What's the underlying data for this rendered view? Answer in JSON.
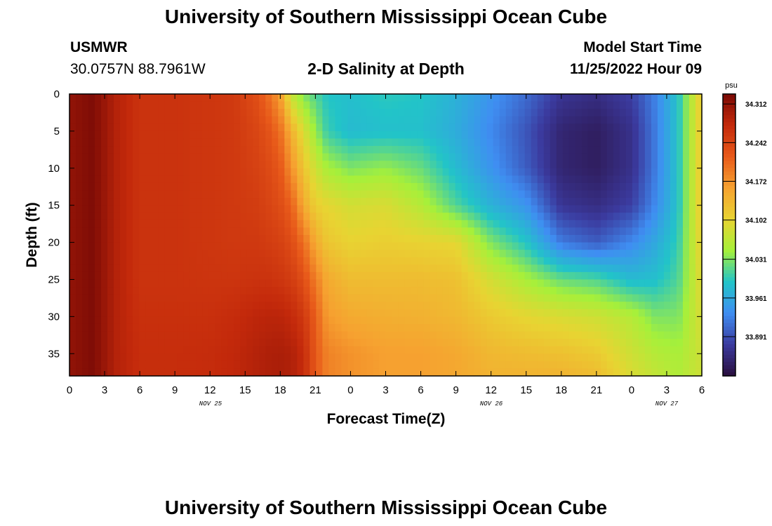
{
  "header": {
    "title": "University of Southern Mississippi Ocean Cube",
    "station": "USMWR",
    "coordinates": "30.0757N  88.7961W",
    "subtitle": "2-D Salinity at Depth",
    "model_start_label": "Model Start Time",
    "model_start_value": "11/25/2022 Hour 09"
  },
  "footer": {
    "title": "University of Southern Mississippi Ocean Cube"
  },
  "colors": {
    "palette": [
      "#2a0f3e",
      "#3b3a9e",
      "#3f8ef2",
      "#22c4c8",
      "#a6f03a",
      "#e8d432",
      "#f6a130",
      "#e85a1a",
      "#c3290b",
      "#7a0a05"
    ]
  },
  "chart_data": {
    "type": "heatmap",
    "xlabel": "Forecast Time(Z)",
    "ylabel": "Depth (ft)",
    "x_ticks": [
      "0",
      "3",
      "6",
      "9",
      "12",
      "15",
      "18",
      "21",
      "0",
      "3",
      "6",
      "9",
      "12",
      "15",
      "18",
      "21",
      "0",
      "3",
      "6"
    ],
    "x_range_hours": [
      0,
      54
    ],
    "date_labels": [
      "NOV 25",
      "NOV 26",
      "NOV 27"
    ],
    "y_ticks": [
      "0",
      "5",
      "10",
      "15",
      "20",
      "25",
      "30",
      "35"
    ],
    "y_range_ft": [
      0,
      38
    ],
    "colorbar": {
      "unit": "psu",
      "ticks": [
        "34.312",
        "34.242",
        "34.172",
        "34.102",
        "34.031",
        "33.961",
        "33.891"
      ],
      "range": [
        33.82,
        34.33
      ]
    },
    "salinity_profiles": {
      "depths_ft": [
        0,
        5,
        10,
        15,
        20,
        25,
        30,
        35,
        38
      ],
      "times_hours": [
        0,
        2,
        4,
        6,
        9,
        12,
        14,
        16,
        17,
        18,
        19,
        20,
        21,
        22,
        24,
        27,
        30,
        33,
        36,
        39,
        42,
        45,
        48,
        50,
        52,
        54
      ],
      "values": [
        [
          34.312,
          34.312,
          34.312,
          34.312,
          34.312,
          34.312,
          34.312,
          34.312,
          34.312
        ],
        [
          34.326,
          34.326,
          34.326,
          34.326,
          34.326,
          34.326,
          34.326,
          34.326,
          34.326
        ],
        [
          34.285,
          34.285,
          34.285,
          34.285,
          34.285,
          34.285,
          34.285,
          34.285,
          34.285
        ],
        [
          34.262,
          34.262,
          34.262,
          34.262,
          34.262,
          34.262,
          34.265,
          34.268,
          34.268
        ],
        [
          34.262,
          34.262,
          34.262,
          34.262,
          34.262,
          34.262,
          34.265,
          34.268,
          34.268
        ],
        [
          34.258,
          34.258,
          34.258,
          34.258,
          34.258,
          34.26,
          34.265,
          34.27,
          34.27
        ],
        [
          34.255,
          34.255,
          34.255,
          34.255,
          34.255,
          34.26,
          34.27,
          34.275,
          34.275
        ],
        [
          34.23,
          34.24,
          34.245,
          34.25,
          34.255,
          34.262,
          34.278,
          34.285,
          34.285
        ],
        [
          34.2,
          34.225,
          34.235,
          34.242,
          34.25,
          34.262,
          34.28,
          34.29,
          34.29
        ],
        [
          34.16,
          34.2,
          34.22,
          34.232,
          34.245,
          34.258,
          34.28,
          34.292,
          34.292
        ],
        [
          34.07,
          34.14,
          34.17,
          34.21,
          34.232,
          34.25,
          34.272,
          34.288,
          34.288
        ],
        [
          34.03,
          34.09,
          34.12,
          34.15,
          34.2,
          34.23,
          34.255,
          34.27,
          34.27
        ],
        [
          34.01,
          34.04,
          34.08,
          34.11,
          34.15,
          34.19,
          34.215,
          34.22,
          34.22
        ],
        [
          33.99,
          34.0,
          34.05,
          34.1,
          34.12,
          34.15,
          34.165,
          34.185,
          34.185
        ],
        [
          33.985,
          33.98,
          34.03,
          34.085,
          34.105,
          34.13,
          34.15,
          34.172,
          34.172
        ],
        [
          33.995,
          33.985,
          34.04,
          34.09,
          34.11,
          34.13,
          34.145,
          34.16,
          34.16
        ],
        [
          33.99,
          33.985,
          34.02,
          34.06,
          34.105,
          34.13,
          34.142,
          34.16,
          34.16
        ],
        [
          33.97,
          33.965,
          33.98,
          34.01,
          34.1,
          34.125,
          34.135,
          34.152,
          34.152
        ],
        [
          33.94,
          33.93,
          33.94,
          33.97,
          34.03,
          34.085,
          34.115,
          34.135,
          34.14
        ],
        [
          33.91,
          33.895,
          33.9,
          33.94,
          33.99,
          34.05,
          34.1,
          34.13,
          34.14
        ],
        [
          33.87,
          33.85,
          33.85,
          33.87,
          33.92,
          34.02,
          34.09,
          34.125,
          34.14
        ],
        [
          33.86,
          33.84,
          33.84,
          33.86,
          33.9,
          34.01,
          34.08,
          34.115,
          34.13
        ],
        [
          33.88,
          33.865,
          33.865,
          33.88,
          33.93,
          33.98,
          34.06,
          34.08,
          34.09
        ],
        [
          33.925,
          33.92,
          33.92,
          33.93,
          33.96,
          33.985,
          34.03,
          34.06,
          34.07
        ],
        [
          33.99,
          33.99,
          33.99,
          33.99,
          34.0,
          34.01,
          34.03,
          34.05,
          34.055
        ],
        [
          34.12,
          34.12,
          34.12,
          34.12,
          34.11,
          34.1,
          34.09,
          34.08,
          34.08
        ]
      ]
    }
  }
}
